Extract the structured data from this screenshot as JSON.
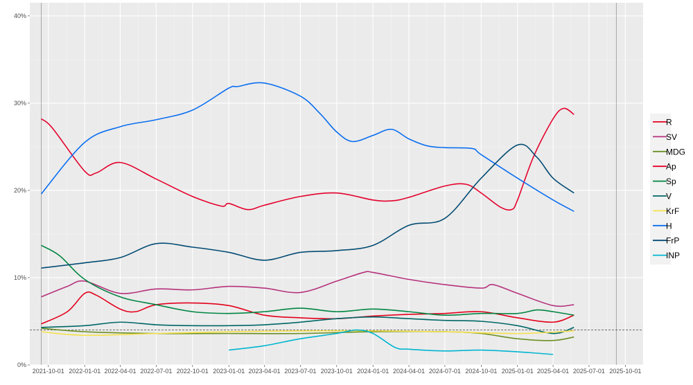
{
  "chart_data": {
    "type": "line",
    "title": "",
    "xlabel": "",
    "ylabel": "",
    "xlim": [
      "2021-08-15",
      "2025-11-15"
    ],
    "ylim": [
      0,
      41.5
    ],
    "grid": true,
    "legend_placement": "right",
    "x_ticks": [
      "2021-10-01",
      "2022-01-01",
      "2022-04-01",
      "2022-07-01",
      "2022-10-01",
      "2023-01-01",
      "2023-04-01",
      "2023-07-01",
      "2023-10-01",
      "2024-01-01",
      "2024-04-01",
      "2024-07-01",
      "2024-10-01",
      "2025-01-01",
      "2025-04-01",
      "2025-07-01",
      "2025-10-01"
    ],
    "y_ticks": [
      0,
      10,
      20,
      30,
      40
    ],
    "y_tick_labels": [
      "0%",
      "10%",
      "20%",
      "30%",
      "40%"
    ],
    "threshold_line": 4,
    "vertical_lines": [
      "2021-09-13",
      "2025-09-08"
    ],
    "series": [
      {
        "name": "R",
        "color": "#e3001b",
        "points": [
          [
            "2021-09-13",
            4.7
          ],
          [
            "2021-11-18",
            6.1
          ],
          [
            "2022-01-01",
            8.2
          ],
          [
            "2022-01-30",
            8.0
          ],
          [
            "2022-04-01",
            6.4
          ],
          [
            "2022-05-10",
            6.1
          ],
          [
            "2022-07-01",
            6.9
          ],
          [
            "2022-10-01",
            7.1
          ],
          [
            "2023-01-01",
            6.8
          ],
          [
            "2023-04-01",
            5.7
          ],
          [
            "2023-07-01",
            5.4
          ],
          [
            "2023-10-01",
            5.3
          ],
          [
            "2024-01-01",
            5.6
          ],
          [
            "2024-04-01",
            5.8
          ],
          [
            "2024-07-01",
            5.9
          ],
          [
            "2024-10-01",
            6.1
          ],
          [
            "2025-01-01",
            5.4
          ],
          [
            "2025-04-01",
            4.9
          ],
          [
            "2025-05-24",
            5.7
          ]
        ]
      },
      {
        "name": "SV",
        "color": "#b5317c",
        "points": [
          [
            "2021-09-13",
            7.8
          ],
          [
            "2021-11-18",
            9.0
          ],
          [
            "2022-01-01",
            9.6
          ],
          [
            "2022-04-01",
            8.2
          ],
          [
            "2022-07-01",
            8.7
          ],
          [
            "2022-10-01",
            8.6
          ],
          [
            "2023-01-01",
            9.0
          ],
          [
            "2023-04-01",
            8.8
          ],
          [
            "2023-07-01",
            8.3
          ],
          [
            "2023-10-01",
            9.6
          ],
          [
            "2023-12-08",
            10.6
          ],
          [
            "2024-01-01",
            10.6
          ],
          [
            "2024-04-01",
            9.8
          ],
          [
            "2024-07-01",
            9.2
          ],
          [
            "2024-10-01",
            8.8
          ],
          [
            "2024-10-31",
            9.2
          ],
          [
            "2025-01-01",
            8.2
          ],
          [
            "2025-04-01",
            6.8
          ],
          [
            "2025-05-24",
            6.9
          ]
        ]
      },
      {
        "name": "MDG",
        "color": "#6b8e23",
        "points": [
          [
            "2021-09-13",
            4.2
          ],
          [
            "2022-01-01",
            3.8
          ],
          [
            "2022-07-01",
            3.6
          ],
          [
            "2023-01-01",
            3.6
          ],
          [
            "2023-07-01",
            3.6
          ],
          [
            "2024-01-01",
            3.8
          ],
          [
            "2024-07-01",
            3.8
          ],
          [
            "2024-10-01",
            3.6
          ],
          [
            "2025-01-01",
            3.0
          ],
          [
            "2025-04-01",
            2.8
          ],
          [
            "2025-05-24",
            3.2
          ]
        ]
      },
      {
        "name": "Ap",
        "color": "#e4002b",
        "points": [
          [
            "2021-09-13",
            28.2
          ],
          [
            "2021-10-12",
            27.1
          ],
          [
            "2022-01-01",
            22.2
          ],
          [
            "2022-01-30",
            22.0
          ],
          [
            "2022-04-01",
            23.2
          ],
          [
            "2022-07-01",
            21.3
          ],
          [
            "2022-10-01",
            19.3
          ],
          [
            "2022-12-13",
            18.2
          ],
          [
            "2023-01-01",
            18.5
          ],
          [
            "2023-02-18",
            17.8
          ],
          [
            "2023-04-01",
            18.3
          ],
          [
            "2023-07-01",
            19.3
          ],
          [
            "2023-10-01",
            19.7
          ],
          [
            "2024-01-01",
            18.9
          ],
          [
            "2024-02-17",
            18.8
          ],
          [
            "2024-04-01",
            19.2
          ],
          [
            "2024-07-01",
            20.5
          ],
          [
            "2024-08-24",
            20.7
          ],
          [
            "2024-10-01",
            19.7
          ],
          [
            "2024-11-18",
            18.1
          ],
          [
            "2024-12-17",
            17.8
          ],
          [
            "2025-01-01",
            18.9
          ],
          [
            "2025-02-10",
            23.8
          ],
          [
            "2025-04-01",
            28.2
          ],
          [
            "2025-04-28",
            29.4
          ],
          [
            "2025-05-24",
            28.7
          ]
        ]
      },
      {
        "name": "Sp",
        "color": "#008542",
        "points": [
          [
            "2021-09-13",
            13.7
          ],
          [
            "2021-10-30",
            12.5
          ],
          [
            "2022-01-01",
            9.8
          ],
          [
            "2022-04-01",
            7.8
          ],
          [
            "2022-07-01",
            6.9
          ],
          [
            "2022-10-01",
            6.1
          ],
          [
            "2023-01-01",
            5.9
          ],
          [
            "2023-04-01",
            6.1
          ],
          [
            "2023-07-01",
            6.5
          ],
          [
            "2023-10-01",
            6.1
          ],
          [
            "2024-01-01",
            6.4
          ],
          [
            "2024-04-01",
            6.1
          ],
          [
            "2024-07-01",
            5.7
          ],
          [
            "2024-10-01",
            5.9
          ],
          [
            "2025-01-01",
            5.9
          ],
          [
            "2025-02-19",
            6.3
          ],
          [
            "2025-04-01",
            6.1
          ],
          [
            "2025-05-24",
            5.7
          ]
        ]
      },
      {
        "name": "V",
        "color": "#006666",
        "points": [
          [
            "2021-09-13",
            4.3
          ],
          [
            "2022-01-01",
            4.5
          ],
          [
            "2022-04-01",
            4.9
          ],
          [
            "2022-07-01",
            4.6
          ],
          [
            "2022-10-01",
            4.5
          ],
          [
            "2023-01-01",
            4.5
          ],
          [
            "2023-04-01",
            4.6
          ],
          [
            "2023-07-01",
            4.9
          ],
          [
            "2023-10-01",
            5.3
          ],
          [
            "2024-01-01",
            5.5
          ],
          [
            "2024-04-01",
            5.3
          ],
          [
            "2024-07-01",
            5.1
          ],
          [
            "2024-10-01",
            5.0
          ],
          [
            "2025-01-01",
            4.5
          ],
          [
            "2025-04-01",
            3.6
          ],
          [
            "2025-05-24",
            4.3
          ]
        ]
      },
      {
        "name": "KrF",
        "color": "#f5e14a",
        "points": [
          [
            "2021-09-13",
            3.8
          ],
          [
            "2022-01-01",
            3.4
          ],
          [
            "2022-07-01",
            3.6
          ],
          [
            "2023-01-01",
            3.8
          ],
          [
            "2023-07-01",
            3.9
          ],
          [
            "2024-01-01",
            3.9
          ],
          [
            "2024-07-01",
            3.8
          ],
          [
            "2025-01-01",
            3.6
          ],
          [
            "2025-05-24",
            3.9
          ]
        ]
      },
      {
        "name": "H",
        "color": "#0a6ef0",
        "points": [
          [
            "2021-09-13",
            19.6
          ],
          [
            "2022-01-01",
            25.5
          ],
          [
            "2022-04-01",
            27.3
          ],
          [
            "2022-07-01",
            28.1
          ],
          [
            "2022-10-01",
            29.2
          ],
          [
            "2022-12-31",
            31.7
          ],
          [
            "2023-01-23",
            31.9
          ],
          [
            "2023-04-01",
            32.3
          ],
          [
            "2023-07-01",
            30.8
          ],
          [
            "2023-08-20",
            28.8
          ],
          [
            "2023-10-01",
            26.7
          ],
          [
            "2023-11-10",
            25.6
          ],
          [
            "2024-01-01",
            26.3
          ],
          [
            "2024-02-17",
            27.0
          ],
          [
            "2024-04-01",
            25.9
          ],
          [
            "2024-05-18",
            25.1
          ],
          [
            "2024-07-01",
            24.9
          ],
          [
            "2024-09-08",
            24.8
          ],
          [
            "2024-10-01",
            24.1
          ],
          [
            "2025-01-01",
            21.4
          ],
          [
            "2025-04-01",
            18.9
          ],
          [
            "2025-05-24",
            17.6
          ]
        ]
      },
      {
        "name": "FrP",
        "color": "#024b73",
        "points": [
          [
            "2021-09-13",
            11.1
          ],
          [
            "2022-01-01",
            11.7
          ],
          [
            "2022-04-01",
            12.3
          ],
          [
            "2022-07-01",
            13.9
          ],
          [
            "2022-10-01",
            13.5
          ],
          [
            "2023-01-01",
            12.9
          ],
          [
            "2023-04-01",
            12.0
          ],
          [
            "2023-07-01",
            12.9
          ],
          [
            "2023-10-01",
            13.1
          ],
          [
            "2024-01-01",
            13.7
          ],
          [
            "2024-04-01",
            16.0
          ],
          [
            "2024-07-01",
            16.8
          ],
          [
            "2024-10-01",
            21.4
          ],
          [
            "2025-01-01",
            25.2
          ],
          [
            "2025-02-19",
            23.8
          ],
          [
            "2025-04-01",
            21.4
          ],
          [
            "2025-05-24",
            19.7
          ]
        ]
      },
      {
        "name": "INP",
        "color": "#00b5d1",
        "points": [
          [
            "2023-01-01",
            1.7
          ],
          [
            "2023-04-01",
            2.2
          ],
          [
            "2023-07-01",
            3.0
          ],
          [
            "2023-10-01",
            3.6
          ],
          [
            "2023-11-20",
            4.0
          ],
          [
            "2024-01-01",
            3.6
          ],
          [
            "2024-02-26",
            2.0
          ],
          [
            "2024-04-01",
            1.8
          ],
          [
            "2024-07-01",
            1.6
          ],
          [
            "2024-10-01",
            1.7
          ],
          [
            "2025-01-01",
            1.5
          ],
          [
            "2025-04-01",
            1.2
          ]
        ]
      }
    ]
  }
}
